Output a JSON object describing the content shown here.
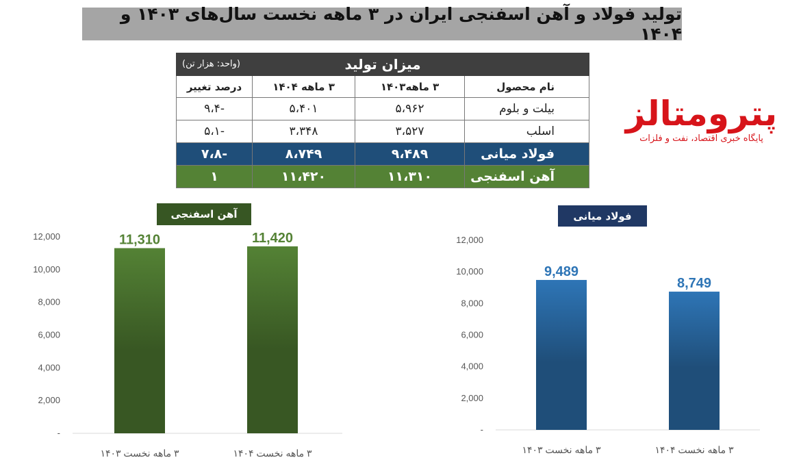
{
  "title": "تولید فولاد و آهن اسفنجی ایران در ۳ ماهه نخست سال‌های ۱۴۰۳ و ۱۴۰۴",
  "table": {
    "caption": "میزان تولید",
    "unit_note": "(واحد: هزار تن)",
    "headers": {
      "name": "نام محصول",
      "col1403": "۳ ماهه۱۴۰۳",
      "col1404": "۳ ماهه ۱۴۰۴",
      "change": "درصد تغییر"
    },
    "rows": [
      {
        "name": "بیلت و بلوم",
        "v1403": "۵،۹۶۲",
        "v1404": "۵،۴۰۱",
        "change": "-۹،۴"
      },
      {
        "name": "اسلب",
        "v1403": "۳،۵۲۷",
        "v1404": "۳،۳۴۸",
        "change": "-۵،۱"
      },
      {
        "name": "فولاد میانی",
        "v1403": "۹،۴۸۹",
        "v1404": "۸،۷۴۹",
        "change": "-۷،۸"
      },
      {
        "name": "آهن اسفنجی",
        "v1403": "۱۱،۳۱۰",
        "v1404": "۱۱،۴۲۰",
        "change": "۱"
      }
    ]
  },
  "logo": {
    "name": "پترومتالز",
    "tagline": "پایگاه خبری اقتصاد، نفت و فلزات"
  },
  "colors": {
    "title_bg": "#a5a5a5",
    "table_header_bg": "#3f3f3f",
    "blue_row": "#1f4e79",
    "green_row": "#548235",
    "green_badge": "#375623",
    "blue_badge": "#203864",
    "green_bar_top": "#548235",
    "green_bar_bottom": "#385723",
    "blue_bar_top": "#2e75b6",
    "blue_bar_bottom": "#1f4e79",
    "green_label": "#548235",
    "blue_label": "#2e75b6",
    "logo_red": "#d7141a"
  },
  "chart_data": [
    {
      "type": "bar",
      "title": "آهن اسفنجی",
      "categories": [
        "۳ ماهه نخست ۱۴۰۳",
        "۳ ماهه نخست ۱۴۰۴"
      ],
      "values": [
        11310,
        11420
      ],
      "value_labels": [
        "11,310",
        "11,420"
      ],
      "ylim": [
        0,
        12000
      ],
      "yticks": [
        "-",
        "2,000",
        "4,000",
        "6,000",
        "8,000",
        "10,000",
        "12,000"
      ],
      "grid": false
    },
    {
      "type": "bar",
      "title": "فولاد میانی",
      "categories": [
        "۳ ماهه نخست ۱۴۰۳",
        "۳ ماهه نخست ۱۴۰۴"
      ],
      "values": [
        9489,
        8749
      ],
      "value_labels": [
        "9,489",
        "8,749"
      ],
      "ylim": [
        0,
        12000
      ],
      "yticks": [
        "-",
        "2,000",
        "4,000",
        "6,000",
        "8,000",
        "10,000",
        "12,000"
      ],
      "grid": false
    }
  ]
}
